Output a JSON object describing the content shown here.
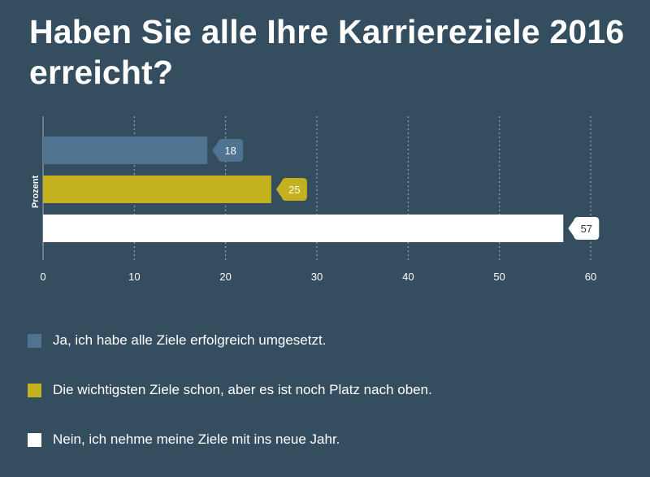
{
  "chart_data": {
    "type": "bar",
    "orientation": "horizontal",
    "title": "Haben Sie alle Ihre Karriereziele 2016 erreicht?",
    "ylabel": "Prozent",
    "xlim": [
      0,
      60
    ],
    "xticks": [
      0,
      10,
      20,
      30,
      40,
      50,
      60
    ],
    "grid": true,
    "legend_position": "bottom",
    "series": [
      {
        "name": "Ja, ich habe alle Ziele erfolgreich umgesetzt.",
        "value": 18,
        "color": "#4f7390",
        "label_color": "#4f7390",
        "label_text_color": "#ffffff"
      },
      {
        "name": "Die wichtigsten Ziele schon, aber es ist noch Platz nach oben.",
        "value": 25,
        "color": "#c3b11f",
        "label_color": "#c3b11f",
        "label_text_color": "#ffffff"
      },
      {
        "name": "Nein, ich nehme meine Ziele mit ins neue Jahr.",
        "value": 57,
        "color": "#ffffff",
        "label_color": "#ffffff",
        "label_text_color": "#333333"
      }
    ]
  },
  "colors": {
    "background": "#344d5f",
    "grid": "#c9d2d9",
    "text": "#ffffff"
  }
}
